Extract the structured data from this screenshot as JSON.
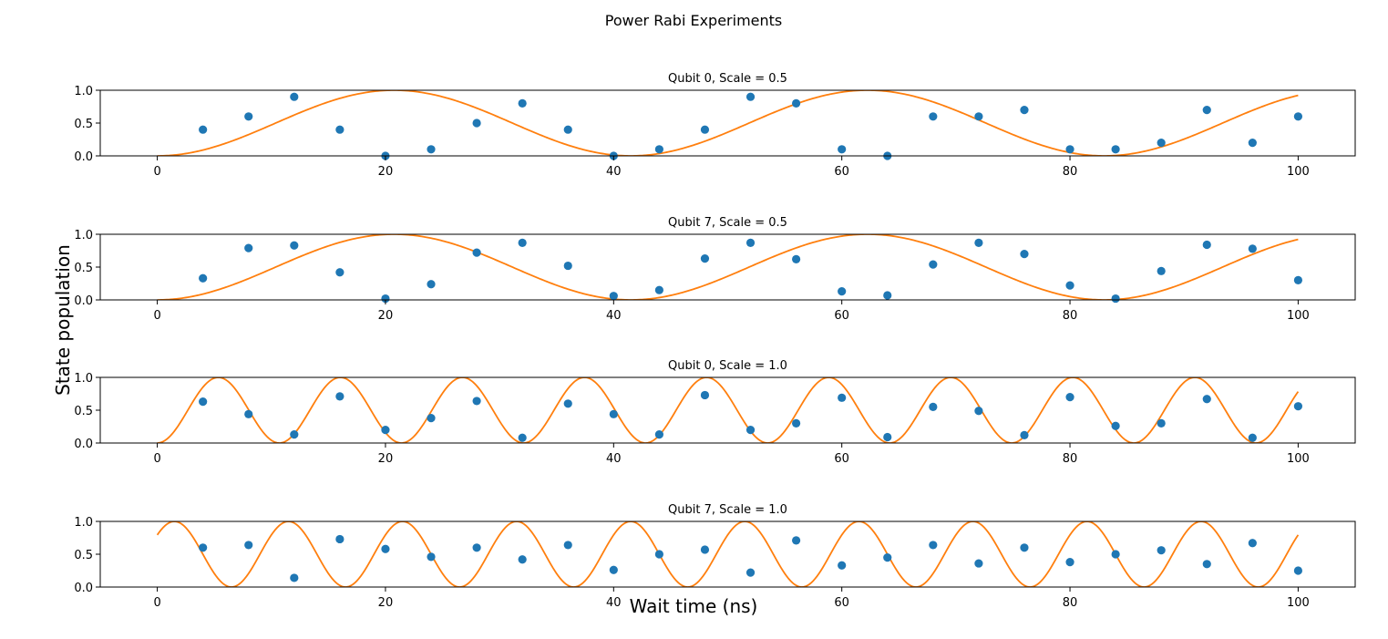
{
  "figure": {
    "suptitle": "Power Rabi Experiments",
    "xlabel": "Wait time (ns)",
    "ylabel": "State population"
  },
  "style": {
    "point_color": "#1f77b4",
    "fit_color": "#ff7f0e",
    "axes_color": "#000000"
  },
  "chart_data": [
    {
      "type": "scatter",
      "title": "Qubit 0, Scale = 0.5",
      "xlim": [
        -5,
        105
      ],
      "ylim": [
        0,
        1
      ],
      "xticks": [
        0,
        20,
        40,
        60,
        80,
        100
      ],
      "xticklabels": [
        "0",
        "20",
        "40",
        "60",
        "80",
        "100"
      ],
      "yticks": [
        0,
        0.5,
        1
      ],
      "yticklabels": [
        "0.0",
        "0.5",
        "1.0"
      ],
      "series": [
        {
          "kind": "points",
          "x": [
            4,
            8,
            12,
            16,
            20,
            24,
            28,
            32,
            36,
            40,
            44,
            48,
            52,
            56,
            60,
            64,
            68,
            72,
            76,
            80,
            84,
            88,
            92,
            96,
            100
          ],
          "y": [
            0.4,
            0.6,
            0.9,
            0.4,
            0.0,
            0.1,
            0.5,
            0.8,
            0.4,
            0.0,
            0.1,
            0.4,
            0.9,
            0.8,
            0.1,
            0.0,
            0.6,
            0.6,
            0.7,
            0.1,
            0.1,
            0.2,
            0.7,
            0.2,
            0.6
          ]
        },
        {
          "kind": "fit",
          "model": "a*sin^2(pi*x/p + phi) + c",
          "amplitude": 1.0,
          "period": 41.5,
          "phase": 0.0,
          "offset": 0.0,
          "x_range": [
            0,
            100
          ]
        }
      ]
    },
    {
      "type": "scatter",
      "title": "Qubit 7, Scale = 0.5",
      "xlim": [
        -5,
        105
      ],
      "ylim": [
        0,
        1
      ],
      "xticks": [
        0,
        20,
        40,
        60,
        80,
        100
      ],
      "xticklabels": [
        "0",
        "20",
        "40",
        "60",
        "80",
        "100"
      ],
      "yticks": [
        0,
        0.5,
        1
      ],
      "yticklabels": [
        "0.0",
        "0.5",
        "1.0"
      ],
      "series": [
        {
          "kind": "points",
          "x": [
            4,
            8,
            12,
            16,
            20,
            24,
            28,
            32,
            36,
            40,
            44,
            48,
            52,
            56,
            60,
            64,
            68,
            72,
            76,
            80,
            84,
            88,
            92,
            96,
            100
          ],
          "y": [
            0.33,
            0.79,
            0.83,
            0.42,
            0.02,
            0.24,
            0.72,
            0.87,
            0.52,
            0.06,
            0.15,
            0.63,
            0.87,
            0.62,
            0.13,
            0.07,
            0.54,
            0.87,
            0.7,
            0.22,
            0.02,
            0.44,
            0.84,
            0.78,
            0.3
          ]
        },
        {
          "kind": "fit",
          "model": "a*sin^2(pi*x/p + phi) + c",
          "amplitude": 1.0,
          "period": 41.5,
          "phase": 0.0,
          "offset": 0.0,
          "x_range": [
            0,
            100
          ]
        }
      ]
    },
    {
      "type": "scatter",
      "title": "Qubit 0, Scale = 1.0",
      "xlim": [
        -5,
        105
      ],
      "ylim": [
        0,
        1
      ],
      "xticks": [
        0,
        20,
        40,
        60,
        80,
        100
      ],
      "xticklabels": [
        "0",
        "20",
        "40",
        "60",
        "80",
        "100"
      ],
      "yticks": [
        0,
        0.5,
        1
      ],
      "yticklabels": [
        "0.0",
        "0.5",
        "1.0"
      ],
      "series": [
        {
          "kind": "points",
          "x": [
            4,
            8,
            12,
            16,
            20,
            24,
            28,
            32,
            36,
            40,
            44,
            48,
            52,
            56,
            60,
            64,
            68,
            72,
            76,
            80,
            84,
            88,
            92,
            96,
            100
          ],
          "y": [
            0.63,
            0.44,
            0.13,
            0.71,
            0.2,
            0.38,
            0.64,
            0.08,
            0.6,
            0.44,
            0.13,
            0.73,
            0.2,
            0.3,
            0.69,
            0.09,
            0.55,
            0.49,
            0.12,
            0.7,
            0.26,
            0.3,
            0.67,
            0.08,
            0.56
          ]
        },
        {
          "kind": "fit",
          "model": "a*sin^2(pi*x/p + phi) + c",
          "amplitude": 1.0,
          "period": 10.7,
          "phase": 0.0,
          "offset": 0.0,
          "x_range": [
            0,
            100
          ]
        }
      ]
    },
    {
      "type": "scatter",
      "title": "Qubit 7, Scale = 1.0",
      "xlim": [
        -5,
        105
      ],
      "ylim": [
        0,
        1
      ],
      "xticks": [
        0,
        20,
        40,
        60,
        80,
        100
      ],
      "xticklabels": [
        "0",
        "20",
        "40",
        "60",
        "80",
        "100"
      ],
      "yticks": [
        0,
        0.5,
        1
      ],
      "yticklabels": [
        "0.0",
        "0.5",
        "1.0"
      ],
      "series": [
        {
          "kind": "points",
          "x": [
            4,
            8,
            12,
            16,
            20,
            24,
            28,
            32,
            36,
            40,
            44,
            48,
            52,
            56,
            60,
            64,
            68,
            72,
            76,
            80,
            84,
            88,
            92,
            96,
            100
          ],
          "y": [
            0.6,
            0.64,
            0.14,
            0.73,
            0.58,
            0.46,
            0.6,
            0.42,
            0.64,
            0.26,
            0.5,
            0.57,
            0.22,
            0.71,
            0.33,
            0.45,
            0.64,
            0.36,
            0.6,
            0.38,
            0.5,
            0.56,
            0.35,
            0.67,
            0.25
          ]
        },
        {
          "kind": "fit",
          "model": "a*sin^2(pi*x/p + phi) + c",
          "amplitude": 1.0,
          "period": 10.0,
          "phase": 1.1,
          "offset": 0.0,
          "x_range": [
            0,
            100
          ]
        }
      ]
    }
  ]
}
